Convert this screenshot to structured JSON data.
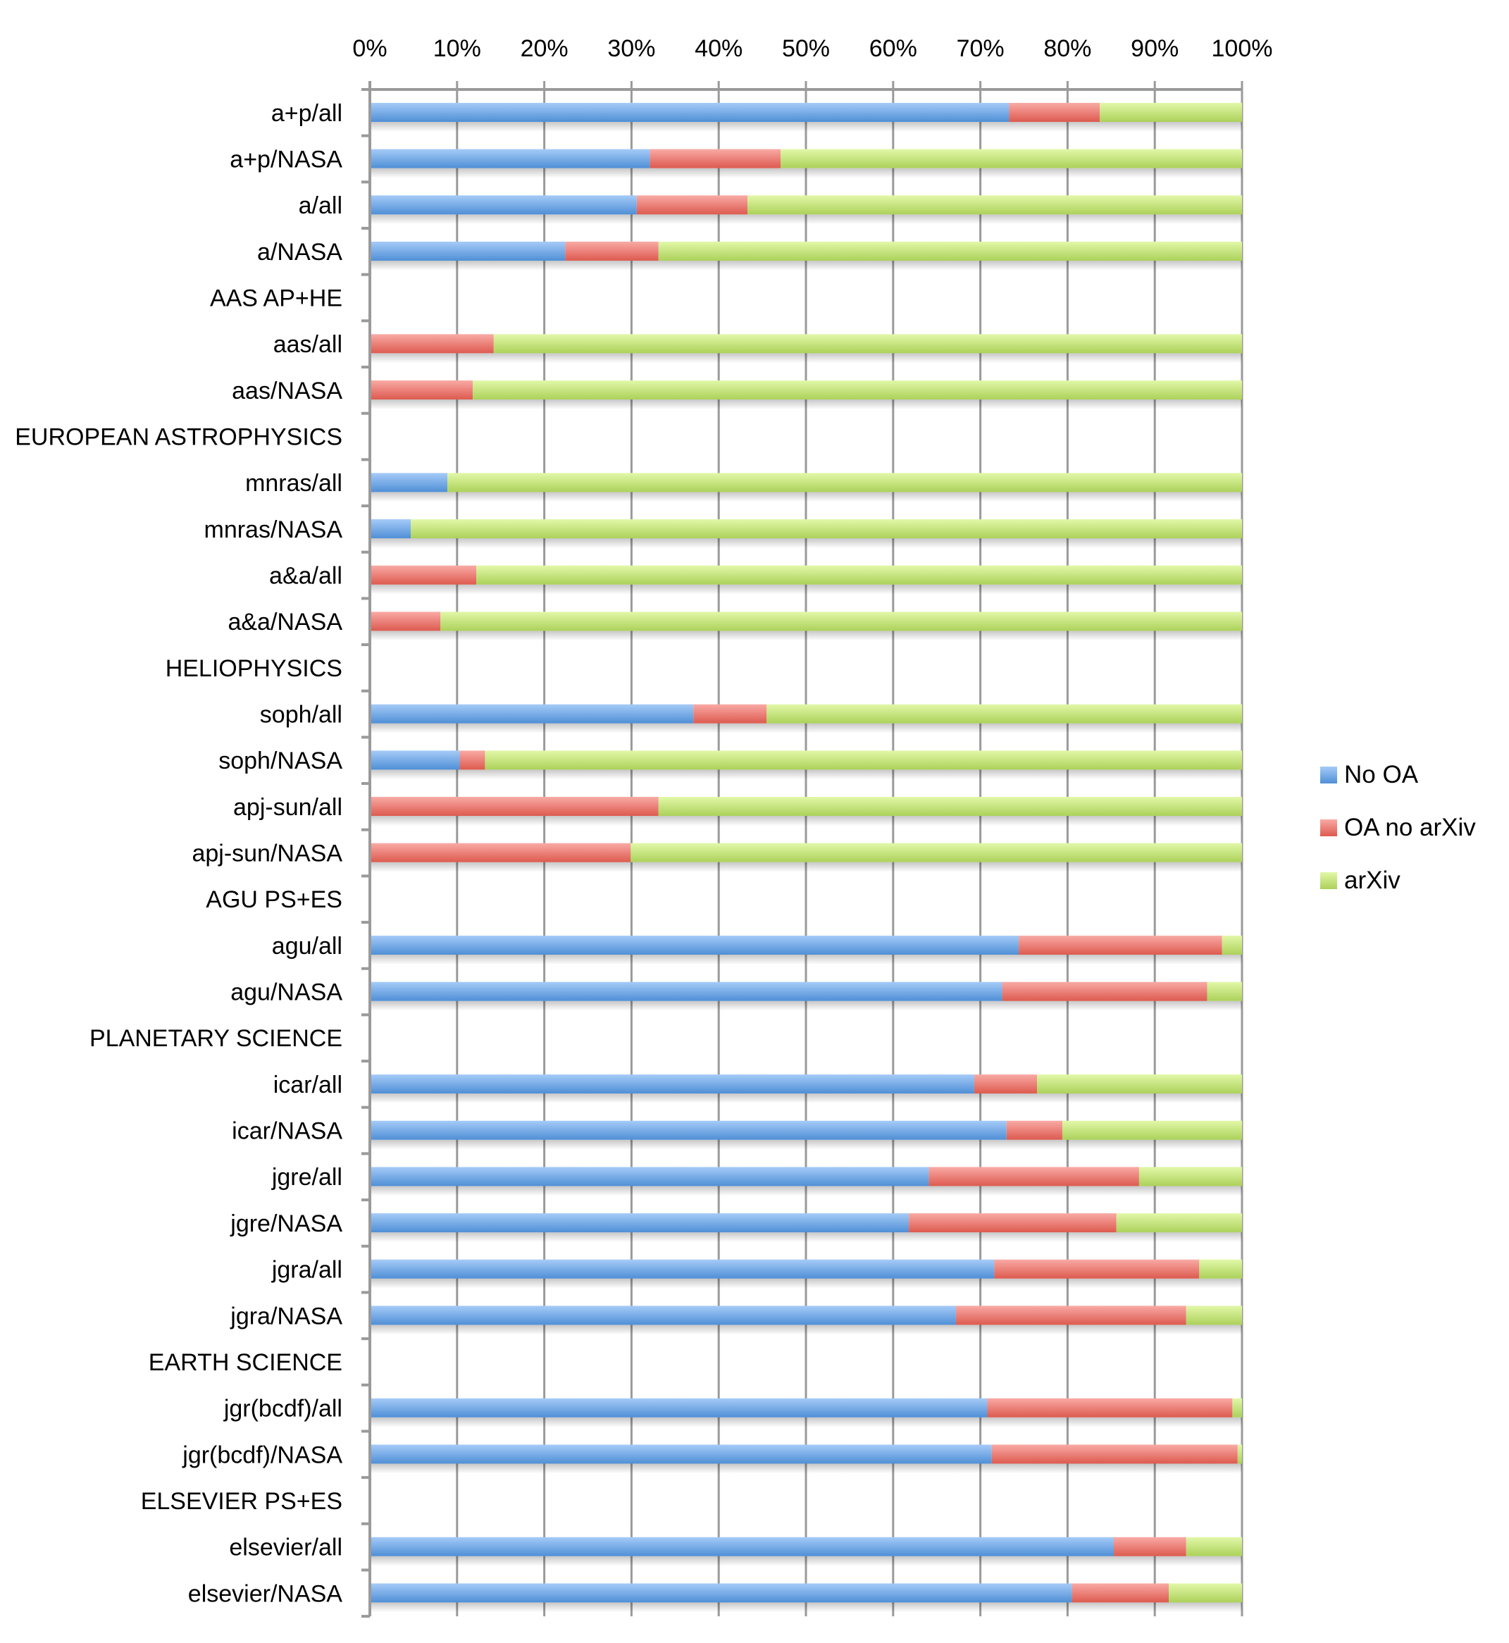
{
  "chart_data": {
    "type": "bar",
    "orientation": "horizontal",
    "stacked": "percent",
    "title": "",
    "xlabel": "",
    "ylabel": "",
    "xlim": [
      0,
      100
    ],
    "x_ticks": [
      "0%",
      "10%",
      "20%",
      "30%",
      "40%",
      "50%",
      "60%",
      "70%",
      "80%",
      "90%",
      "100%"
    ],
    "x_axis_position": "top",
    "grid": "vertical",
    "legend_position": "right",
    "categories": [
      "a+p/all",
      "a+p/NASA",
      "a/all",
      "a/NASA",
      "AAS AP+HE",
      "aas/all",
      "aas/NASA",
      "EUROPEAN ASTROPHYSICS",
      "mnras/all",
      "mnras/NASA",
      "a&a/all",
      "a&a/NASA",
      "HELIOPHYSICS",
      "soph/all",
      "soph/NASA",
      "apj-sun/all",
      "apj-sun/NASA",
      "AGU PS+ES",
      "agu/all",
      "agu/NASA",
      "PLANETARY SCIENCE",
      "icar/all",
      "icar/NASA",
      "jgre/all",
      "jgre/NASA",
      "jgra/all",
      "jgra/NASA",
      "EARTH SCIENCE",
      "jgr(bcdf)/all",
      "jgr(bcdf)/NASA",
      "ELSEVIER PS+ES",
      "elsevier/all",
      "elsevier/NASA"
    ],
    "series": [
      {
        "name": "No OA",
        "color": "#4f8fd6",
        "color_light": "#a5cbf8",
        "values": [
          73.3,
          32.1,
          30.6,
          22.4,
          0,
          0,
          0,
          0,
          8.9,
          4.7,
          0,
          0,
          0,
          37.1,
          10.3,
          0,
          0,
          0,
          74.4,
          72.5,
          0,
          69.3,
          73.0,
          64.1,
          61.8,
          71.6,
          67.2,
          0,
          70.8,
          71.3,
          0,
          85.3,
          80.5
        ]
      },
      {
        "name": "OA no arXiv",
        "color": "#dd5a4f",
        "color_light": "#f9aaa5",
        "values": [
          10.4,
          15.0,
          12.7,
          10.7,
          0,
          14.2,
          11.8,
          0,
          0,
          0,
          12.2,
          8.1,
          0,
          8.4,
          2.9,
          33.1,
          29.9,
          0,
          23.3,
          23.5,
          0,
          7.2,
          6.4,
          24.1,
          23.8,
          23.5,
          26.4,
          0,
          28.1,
          28.2,
          0,
          8.3,
          11.1
        ]
      },
      {
        "name": "arXiv",
        "color": "#acd15a",
        "color_light": "#e2f8a8",
        "values": [
          16.3,
          52.9,
          56.7,
          66.9,
          0,
          85.8,
          88.2,
          0,
          91.1,
          95.3,
          87.8,
          91.9,
          0,
          54.5,
          86.8,
          66.9,
          70.1,
          0,
          2.3,
          4.0,
          0,
          23.5,
          20.6,
          11.8,
          14.4,
          4.9,
          6.4,
          0,
          1.1,
          0.5,
          0,
          6.4,
          8.4
        ]
      }
    ]
  },
  "colors": {
    "grid": "#9a9a9a",
    "axis": "#9a9a9a"
  }
}
